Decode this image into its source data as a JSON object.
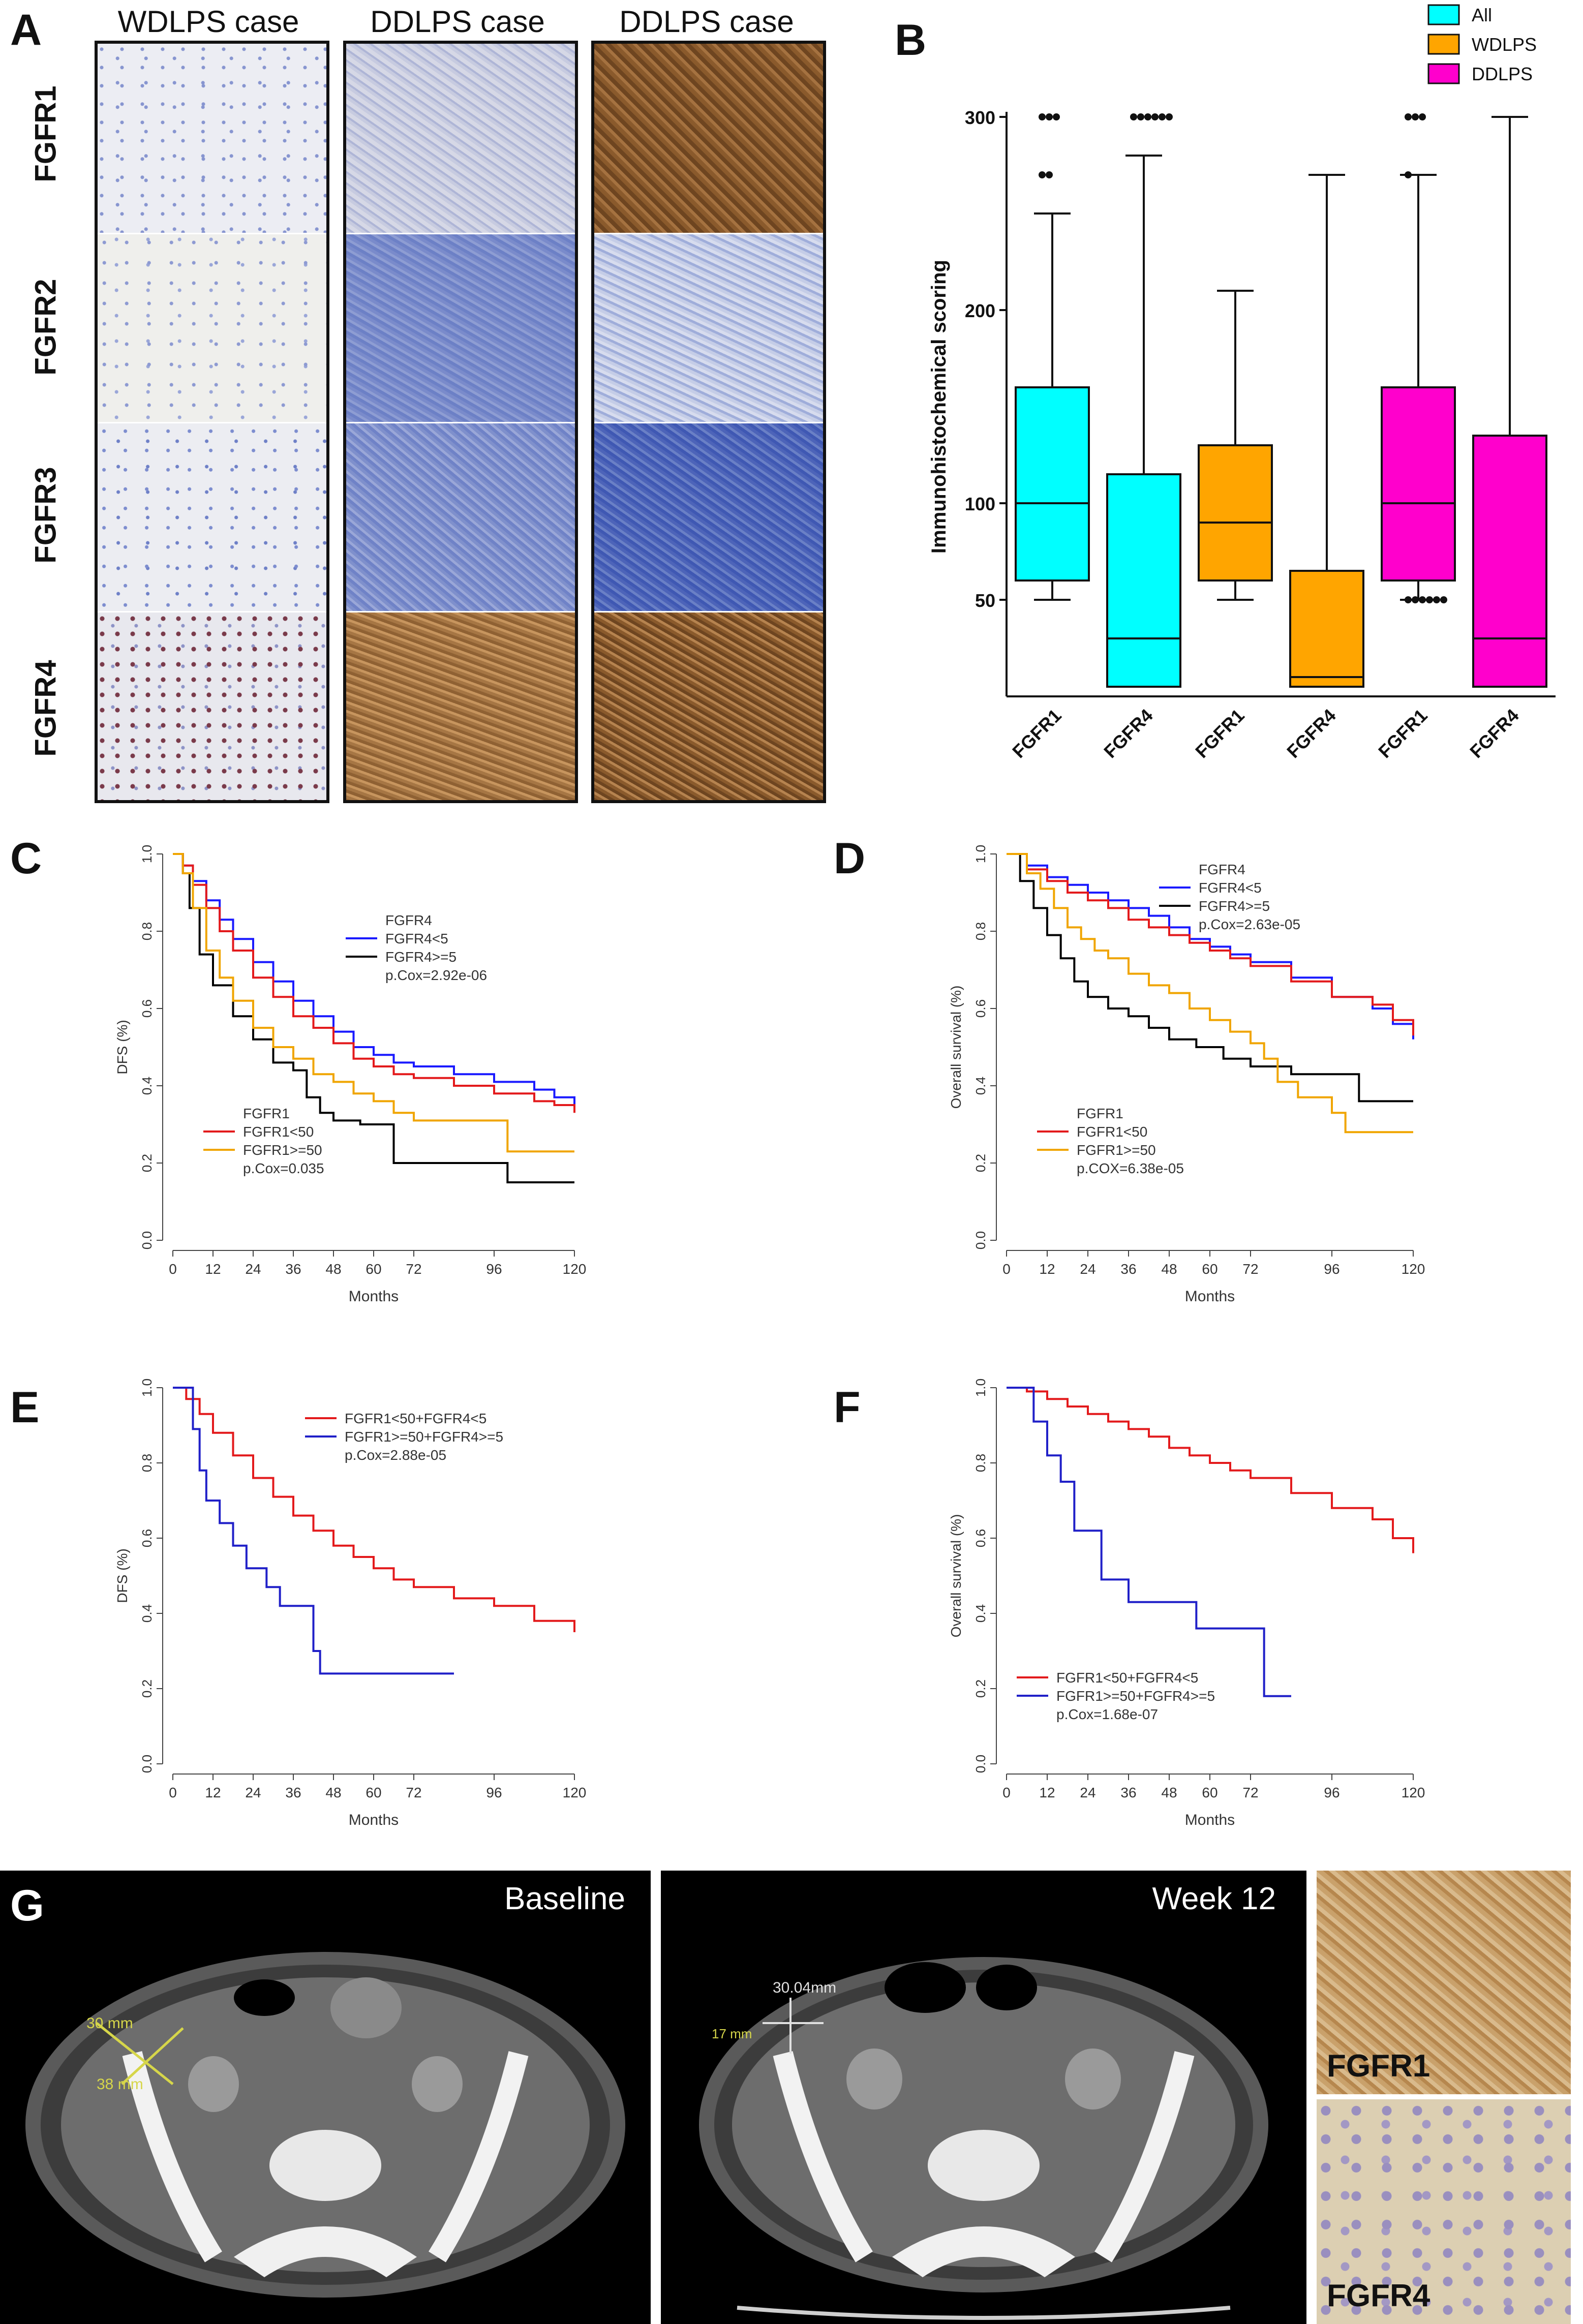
{
  "panel_labels": {
    "A": "A",
    "B": "B",
    "C": "C",
    "D": "D",
    "E": "E",
    "F": "F",
    "G": "G"
  },
  "panel_a": {
    "columns": [
      "WDLPS case",
      "DDLPS case",
      "DDLPS case"
    ],
    "rows": [
      "FGFR1",
      "FGFR2",
      "FGFR3",
      "FGFR4"
    ],
    "colors": {
      "blue_light": "#c9cfe8",
      "blue_mid": "#6f82c7",
      "blue_dark": "#4b62b8",
      "brown": "#9a6a3a",
      "brown_dark": "#7a4e25",
      "pale": "#eceff7"
    }
  },
  "panel_g": {
    "baseline_label": "Baseline",
    "week_label": "Week 12",
    "meas_baseline_1": "30 mm",
    "meas_baseline_2": "38 mm",
    "meas_week_1": "30.04mm",
    "meas_week_2": "17 mm",
    "ihc_labels": [
      "FGFR1",
      "FGFR4"
    ]
  },
  "chart_data": [
    {
      "id": "B",
      "type": "box",
      "ylabel": "Immunohistochemical scoring",
      "yticks": [
        50,
        100,
        200,
        300
      ],
      "ylim": [
        0,
        300
      ],
      "categories": [
        "FGFR1",
        "FGFR4",
        "FGFR1",
        "FGFR4",
        "FGFR1",
        "FGFR4"
      ],
      "legend": [
        "All",
        "WDLPS",
        "DDLPS"
      ],
      "colors": {
        "All": "#00ffff",
        "WDLPS": "#ffa500",
        "DDLPS": "#ff00cc"
      },
      "boxes": [
        {
          "group": "All",
          "label": "FGFR1",
          "min": 50,
          "q1": 60,
          "median": 100,
          "q3": 160,
          "max": 250,
          "outliers": [
            300,
            300,
            300,
            270,
            270
          ]
        },
        {
          "group": "All",
          "label": "FGFR4",
          "min": 5,
          "q1": 5,
          "median": 30,
          "q3": 115,
          "max": 280,
          "outliers": [
            300,
            300,
            300,
            300,
            300,
            300
          ]
        },
        {
          "group": "WDLPS",
          "label": "FGFR1",
          "min": 50,
          "q1": 60,
          "median": 90,
          "q3": 130,
          "max": 210,
          "outliers": []
        },
        {
          "group": "WDLPS",
          "label": "FGFR4",
          "min": 5,
          "q1": 5,
          "median": 10,
          "q3": 65,
          "max": 270,
          "outliers": []
        },
        {
          "group": "DDLPS",
          "label": "FGFR1",
          "min": 50,
          "q1": 60,
          "median": 100,
          "q3": 160,
          "max": 270,
          "outliers": [
            300,
            300,
            300,
            270,
            50,
            50,
            50,
            50,
            50,
            50
          ]
        },
        {
          "group": "DDLPS",
          "label": "FGFR4",
          "min": 5,
          "q1": 5,
          "median": 30,
          "q3": 135,
          "max": 300,
          "outliers": []
        }
      ]
    },
    {
      "id": "C",
      "type": "line",
      "xlabel": "Months",
      "ylabel": "DFS (%)",
      "xticks": [
        0,
        12,
        24,
        36,
        48,
        60,
        72,
        96,
        120
      ],
      "yticks": [
        0.0,
        0.2,
        0.4,
        0.6,
        0.8,
        1.0
      ],
      "xlim": [
        0,
        120
      ],
      "ylim": [
        0,
        1
      ],
      "legends": [
        {
          "title": "FGFR4",
          "entries": [
            "FGFR4<5",
            "FGFR4>=5"
          ],
          "pvalue": "p.Cox=2.92e-06"
        },
        {
          "title": "FGFR1",
          "entries": [
            "FGFR1<50",
            "FGFR1>=50"
          ],
          "pvalue": "p.Cox=0.035"
        }
      ],
      "series": [
        {
          "name": "FGFR4<5",
          "color": "#1a1aff",
          "x": [
            0,
            3,
            6,
            10,
            14,
            18,
            24,
            30,
            36,
            42,
            48,
            54,
            60,
            66,
            72,
            84,
            96,
            108,
            114,
            120
          ],
          "y": [
            1.0,
            0.97,
            0.93,
            0.88,
            0.83,
            0.78,
            0.72,
            0.67,
            0.62,
            0.58,
            0.54,
            0.5,
            0.48,
            0.46,
            0.45,
            0.43,
            0.41,
            0.39,
            0.37,
            0.34
          ]
        },
        {
          "name": "FGFR4>=5",
          "color": "#000000",
          "x": [
            0,
            3,
            5,
            8,
            12,
            18,
            24,
            30,
            36,
            40,
            44,
            48,
            56,
            62,
            66,
            72,
            84,
            96,
            100,
            120
          ],
          "y": [
            1.0,
            0.95,
            0.86,
            0.74,
            0.66,
            0.58,
            0.52,
            0.46,
            0.44,
            0.37,
            0.33,
            0.31,
            0.3,
            0.3,
            0.2,
            0.2,
            0.2,
            0.2,
            0.15,
            0.15
          ]
        },
        {
          "name": "FGFR1<50",
          "color": "#e31a1c",
          "x": [
            0,
            3,
            6,
            10,
            14,
            18,
            24,
            30,
            36,
            42,
            48,
            54,
            60,
            66,
            72,
            84,
            96,
            108,
            114,
            120
          ],
          "y": [
            1.0,
            0.97,
            0.92,
            0.86,
            0.8,
            0.75,
            0.68,
            0.63,
            0.58,
            0.55,
            0.51,
            0.47,
            0.45,
            0.43,
            0.42,
            0.4,
            0.38,
            0.36,
            0.35,
            0.33
          ]
        },
        {
          "name": "FGFR1>=50",
          "color": "#f0a500",
          "x": [
            0,
            3,
            6,
            10,
            14,
            18,
            24,
            30,
            36,
            42,
            48,
            54,
            60,
            66,
            72,
            84,
            96,
            100,
            120
          ],
          "y": [
            1.0,
            0.95,
            0.86,
            0.75,
            0.68,
            0.62,
            0.55,
            0.5,
            0.47,
            0.43,
            0.41,
            0.38,
            0.36,
            0.33,
            0.31,
            0.31,
            0.31,
            0.23,
            0.23
          ]
        }
      ]
    },
    {
      "id": "D",
      "type": "line",
      "xlabel": "Months",
      "ylabel": "Overall survival (%)",
      "xticks": [
        0,
        12,
        24,
        36,
        48,
        60,
        72,
        96,
        120
      ],
      "yticks": [
        0.0,
        0.2,
        0.4,
        0.6,
        0.8,
        1.0
      ],
      "xlim": [
        0,
        120
      ],
      "ylim": [
        0,
        1
      ],
      "legends": [
        {
          "title": "FGFR4",
          "entries": [
            "FGFR4<5",
            "FGFR4>=5"
          ],
          "pvalue": "p.Cox=2.63e-05"
        },
        {
          "title": "FGFR1",
          "entries": [
            "FGFR1<50",
            "FGFR1>=50"
          ],
          "pvalue": "p.COX=6.38e-05"
        }
      ],
      "series": [
        {
          "name": "FGFR4<5",
          "color": "#1a1aff",
          "x": [
            0,
            6,
            12,
            18,
            24,
            30,
            36,
            42,
            48,
            54,
            60,
            66,
            72,
            84,
            96,
            108,
            114,
            120
          ],
          "y": [
            1.0,
            0.97,
            0.94,
            0.92,
            0.9,
            0.88,
            0.86,
            0.84,
            0.81,
            0.78,
            0.76,
            0.74,
            0.72,
            0.68,
            0.63,
            0.6,
            0.56,
            0.52
          ]
        },
        {
          "name": "FGFR4>=5",
          "color": "#000000",
          "x": [
            0,
            4,
            8,
            12,
            16,
            20,
            24,
            30,
            36,
            42,
            48,
            56,
            64,
            72,
            84,
            96,
            104,
            120
          ],
          "y": [
            1.0,
            0.93,
            0.86,
            0.79,
            0.73,
            0.67,
            0.63,
            0.6,
            0.58,
            0.55,
            0.52,
            0.5,
            0.47,
            0.45,
            0.43,
            0.43,
            0.36,
            0.36
          ]
        },
        {
          "name": "FGFR1<50",
          "color": "#e31a1c",
          "x": [
            0,
            6,
            12,
            18,
            24,
            30,
            36,
            42,
            48,
            54,
            60,
            66,
            72,
            84,
            96,
            108,
            114,
            120
          ],
          "y": [
            1.0,
            0.96,
            0.93,
            0.9,
            0.88,
            0.86,
            0.83,
            0.81,
            0.79,
            0.77,
            0.75,
            0.73,
            0.71,
            0.67,
            0.63,
            0.61,
            0.57,
            0.53
          ]
        },
        {
          "name": "FGFR1>=50",
          "color": "#f0a500",
          "x": [
            0,
            6,
            10,
            14,
            18,
            22,
            26,
            30,
            36,
            42,
            48,
            54,
            60,
            66,
            72,
            76,
            80,
            86,
            96,
            100,
            120
          ],
          "y": [
            1.0,
            0.95,
            0.91,
            0.86,
            0.81,
            0.78,
            0.75,
            0.73,
            0.69,
            0.66,
            0.64,
            0.6,
            0.57,
            0.54,
            0.51,
            0.47,
            0.41,
            0.37,
            0.33,
            0.28,
            0.28
          ]
        }
      ]
    },
    {
      "id": "E",
      "type": "line",
      "xlabel": "Months",
      "ylabel": "DFS (%)",
      "xticks": [
        0,
        12,
        24,
        36,
        48,
        60,
        72,
        96,
        120
      ],
      "yticks": [
        0.0,
        0.2,
        0.4,
        0.6,
        0.8,
        1.0
      ],
      "xlim": [
        0,
        120
      ],
      "ylim": [
        0,
        1
      ],
      "legends": [
        {
          "title": "",
          "entries": [
            "FGFR1<50+FGFR4<5",
            "FGFR1>=50+FGFR4>=5"
          ],
          "pvalue": "p.Cox=2.88e-05"
        }
      ],
      "series": [
        {
          "name": "FGFR1<50+FGFR4<5",
          "color": "#e31a1c",
          "x": [
            0,
            4,
            8,
            12,
            18,
            24,
            30,
            36,
            42,
            48,
            54,
            60,
            66,
            72,
            84,
            96,
            108,
            120
          ],
          "y": [
            1.0,
            0.97,
            0.93,
            0.88,
            0.82,
            0.76,
            0.71,
            0.66,
            0.62,
            0.58,
            0.55,
            0.52,
            0.49,
            0.47,
            0.44,
            0.42,
            0.38,
            0.35
          ]
        },
        {
          "name": "FGFR1>=50+FGFR4>=5",
          "color": "#2020c8",
          "x": [
            0,
            4,
            6,
            8,
            10,
            14,
            18,
            22,
            28,
            32,
            40,
            42,
            44,
            50,
            60,
            72,
            84
          ],
          "y": [
            1.0,
            1.0,
            0.89,
            0.78,
            0.7,
            0.64,
            0.58,
            0.52,
            0.47,
            0.42,
            0.42,
            0.3,
            0.24,
            0.24,
            0.24,
            0.24,
            0.24
          ]
        }
      ]
    },
    {
      "id": "F",
      "type": "line",
      "xlabel": "Months",
      "ylabel": "Overall survival (%)",
      "xticks": [
        0,
        12,
        24,
        36,
        48,
        60,
        72,
        96,
        120
      ],
      "yticks": [
        0.0,
        0.2,
        0.4,
        0.6,
        0.8,
        1.0
      ],
      "xlim": [
        0,
        120
      ],
      "ylim": [
        0,
        1
      ],
      "legends": [
        {
          "title": "",
          "entries": [
            "FGFR1<50+FGFR4<5",
            "FGFR1>=50+FGFR4>=5"
          ],
          "pvalue": "p.Cox=1.68e-07"
        }
      ],
      "series": [
        {
          "name": "FGFR1<50+FGFR4<5",
          "color": "#e31a1c",
          "x": [
            0,
            6,
            12,
            18,
            24,
            30,
            36,
            42,
            48,
            54,
            60,
            66,
            72,
            84,
            96,
            108,
            114,
            120
          ],
          "y": [
            1.0,
            0.99,
            0.97,
            0.95,
            0.93,
            0.91,
            0.89,
            0.87,
            0.84,
            0.82,
            0.8,
            0.78,
            0.76,
            0.72,
            0.68,
            0.65,
            0.6,
            0.56
          ]
        },
        {
          "name": "FGFR1>=50+FGFR4>=5",
          "color": "#2020c8",
          "x": [
            0,
            6,
            8,
            12,
            16,
            20,
            24,
            28,
            32,
            36,
            40,
            48,
            56,
            60,
            70,
            74,
            76,
            84
          ],
          "y": [
            1.0,
            1.0,
            0.91,
            0.82,
            0.75,
            0.62,
            0.62,
            0.49,
            0.49,
            0.43,
            0.43,
            0.43,
            0.36,
            0.36,
            0.36,
            0.36,
            0.18,
            0.18
          ]
        }
      ]
    }
  ]
}
